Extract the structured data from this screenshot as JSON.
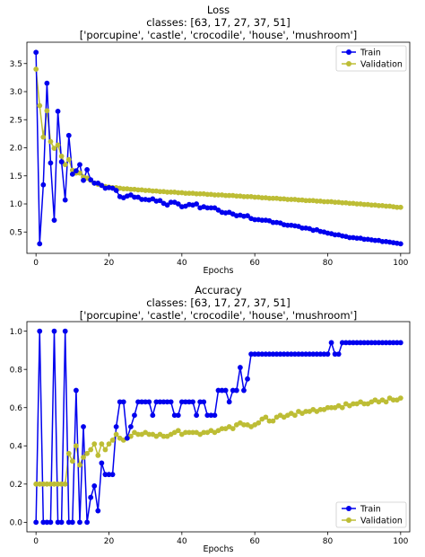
{
  "colors": {
    "train": "#0000ee",
    "validation": "#bdbd35",
    "axes": "#000000",
    "background": "#ffffff"
  },
  "chart_data": [
    {
      "type": "line",
      "title": "Loss",
      "subtitle1": "classes: [63, 17, 27, 37, 51]",
      "subtitle2": "['porcupine', 'castle', 'crocodile', 'house', 'mushroom']",
      "xlabel": "Epochs",
      "ylabel": "",
      "xlim": [
        -2.5,
        102.5
      ],
      "ylim": [
        0.12,
        3.88
      ],
      "xticks": [
        0,
        20,
        40,
        60,
        80,
        100
      ],
      "yticks": [
        0.5,
        1.0,
        1.5,
        2.0,
        2.5,
        3.0,
        3.5
      ],
      "legend": "top-right",
      "grid": false,
      "series": [
        {
          "name": "Train",
          "color": "#0000ee",
          "values": [
            3.7,
            0.29,
            1.34,
            3.15,
            1.73,
            0.71,
            2.65,
            1.75,
            1.07,
            2.22,
            1.53,
            1.59,
            1.7,
            1.42,
            1.61,
            1.43,
            1.37,
            1.37,
            1.33,
            1.28,
            1.29,
            1.28,
            1.24,
            1.13,
            1.11,
            1.14,
            1.16,
            1.12,
            1.12,
            1.08,
            1.08,
            1.07,
            1.09,
            1.05,
            1.06,
            1.01,
            0.98,
            1.03,
            1.03,
            1.0,
            0.95,
            0.96,
            0.99,
            0.98,
            1.0,
            0.93,
            0.95,
            0.93,
            0.93,
            0.93,
            0.89,
            0.85,
            0.84,
            0.85,
            0.82,
            0.79,
            0.8,
            0.78,
            0.79,
            0.74,
            0.72,
            0.72,
            0.71,
            0.71,
            0.7,
            0.67,
            0.67,
            0.66,
            0.63,
            0.62,
            0.62,
            0.61,
            0.6,
            0.57,
            0.57,
            0.56,
            0.53,
            0.54,
            0.51,
            0.5,
            0.48,
            0.47,
            0.45,
            0.45,
            0.43,
            0.42,
            0.4,
            0.4,
            0.39,
            0.39,
            0.37,
            0.37,
            0.36,
            0.35,
            0.35,
            0.33,
            0.33,
            0.32,
            0.31,
            0.3,
            0.29
          ]
        },
        {
          "name": "Validation",
          "color": "#bdbd35",
          "values": [
            3.4,
            2.75,
            2.19,
            2.66,
            2.11,
            1.99,
            2.05,
            1.85,
            1.7,
            1.79,
            1.6,
            1.55,
            1.55,
            1.48,
            1.46,
            1.42,
            1.37,
            1.35,
            1.33,
            1.31,
            1.3,
            1.29,
            1.29,
            1.28,
            1.27,
            1.27,
            1.26,
            1.26,
            1.25,
            1.25,
            1.24,
            1.24,
            1.23,
            1.23,
            1.22,
            1.22,
            1.21,
            1.21,
            1.21,
            1.2,
            1.2,
            1.19,
            1.19,
            1.19,
            1.18,
            1.18,
            1.18,
            1.17,
            1.17,
            1.16,
            1.16,
            1.16,
            1.15,
            1.15,
            1.15,
            1.14,
            1.14,
            1.13,
            1.13,
            1.13,
            1.12,
            1.12,
            1.11,
            1.11,
            1.1,
            1.1,
            1.1,
            1.09,
            1.09,
            1.08,
            1.08,
            1.08,
            1.07,
            1.07,
            1.06,
            1.06,
            1.06,
            1.05,
            1.05,
            1.04,
            1.04,
            1.04,
            1.03,
            1.03,
            1.02,
            1.02,
            1.01,
            1.01,
            1.0,
            1.0,
            0.99,
            0.99,
            0.98,
            0.98,
            0.97,
            0.97,
            0.96,
            0.96,
            0.95,
            0.94,
            0.94
          ]
        }
      ]
    },
    {
      "type": "line",
      "title": "Accuracy",
      "subtitle1": "classes: [63, 17, 27, 37, 51]",
      "subtitle2": "['porcupine', 'castle', 'crocodile', 'house', 'mushroom']",
      "xlabel": "Epochs",
      "ylabel": "",
      "xlim": [
        -2.5,
        102.5
      ],
      "ylim": [
        -0.05,
        1.05
      ],
      "xticks": [
        0,
        20,
        40,
        60,
        80,
        100
      ],
      "yticks": [
        0.0,
        0.2,
        0.4,
        0.6,
        0.8,
        1.0
      ],
      "legend": "bottom-right",
      "grid": false,
      "series": [
        {
          "name": "Train",
          "color": "#0000ee",
          "values": [
            0.0,
            1.0,
            0.0,
            0.0,
            0.0,
            1.0,
            0.0,
            0.0,
            1.0,
            0.0,
            0.0,
            0.69,
            0.0,
            0.5,
            0.0,
            0.13,
            0.19,
            0.06,
            0.31,
            0.25,
            0.25,
            0.25,
            0.5,
            0.63,
            0.63,
            0.44,
            0.5,
            0.56,
            0.63,
            0.63,
            0.63,
            0.63,
            0.56,
            0.63,
            0.63,
            0.63,
            0.63,
            0.63,
            0.56,
            0.56,
            0.63,
            0.63,
            0.63,
            0.63,
            0.56,
            0.63,
            0.63,
            0.56,
            0.56,
            0.56,
            0.69,
            0.69,
            0.69,
            0.63,
            0.69,
            0.69,
            0.81,
            0.69,
            0.75,
            0.88,
            0.88,
            0.88,
            0.88,
            0.88,
            0.88,
            0.88,
            0.88,
            0.88,
            0.88,
            0.88,
            0.88,
            0.88,
            0.88,
            0.88,
            0.88,
            0.88,
            0.88,
            0.88,
            0.88,
            0.88,
            0.88,
            0.94,
            0.88,
            0.88,
            0.94,
            0.94,
            0.94,
            0.94,
            0.94,
            0.94,
            0.94,
            0.94,
            0.94,
            0.94,
            0.94,
            0.94,
            0.94,
            0.94,
            0.94,
            0.94,
            0.94
          ]
        },
        {
          "name": "Validation",
          "color": "#bdbd35",
          "values": [
            0.2,
            0.2,
            0.2,
            0.2,
            0.2,
            0.2,
            0.2,
            0.2,
            0.2,
            0.36,
            0.32,
            0.4,
            0.3,
            0.34,
            0.36,
            0.38,
            0.41,
            0.35,
            0.41,
            0.38,
            0.41,
            0.43,
            0.46,
            0.44,
            0.43,
            0.44,
            0.45,
            0.47,
            0.46,
            0.46,
            0.47,
            0.46,
            0.46,
            0.45,
            0.46,
            0.45,
            0.45,
            0.46,
            0.47,
            0.48,
            0.46,
            0.47,
            0.47,
            0.47,
            0.47,
            0.46,
            0.47,
            0.47,
            0.48,
            0.47,
            0.48,
            0.49,
            0.49,
            0.5,
            0.49,
            0.51,
            0.52,
            0.51,
            0.51,
            0.5,
            0.51,
            0.52,
            0.54,
            0.55,
            0.53,
            0.53,
            0.55,
            0.56,
            0.55,
            0.56,
            0.57,
            0.56,
            0.58,
            0.57,
            0.58,
            0.58,
            0.59,
            0.58,
            0.59,
            0.59,
            0.6,
            0.6,
            0.6,
            0.61,
            0.6,
            0.62,
            0.61,
            0.62,
            0.62,
            0.63,
            0.62,
            0.62,
            0.63,
            0.64,
            0.63,
            0.64,
            0.63,
            0.65,
            0.64,
            0.64,
            0.65
          ]
        }
      ]
    }
  ]
}
